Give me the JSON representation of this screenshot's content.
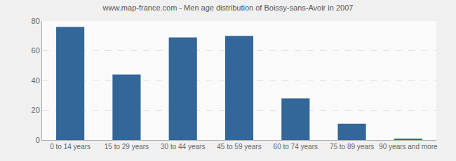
{
  "chart_data": {
    "type": "bar",
    "title": "www.map-france.com - Men age distribution of Boissy-sans-Avoir in 2007",
    "categories": [
      "0 to 14 years",
      "15 to 29 years",
      "30 to 44 years",
      "45 to 59 years",
      "60 to 74 years",
      "75 to 89 years",
      "90 years and more"
    ],
    "values": [
      76,
      44,
      69,
      70,
      28,
      11,
      1
    ],
    "color": "#336699",
    "ylim": [
      0,
      80
    ],
    "yticks": [
      0,
      20,
      40,
      60,
      80
    ],
    "grid": true
  }
}
